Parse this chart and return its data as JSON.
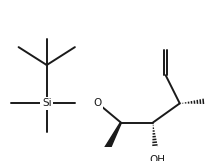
{
  "background": "#ffffff",
  "line_color": "#1a1a1a",
  "line_width": 1.4,
  "si_label": "Si",
  "o_label": "O",
  "oh_label": "OH",
  "fig_width": 2.06,
  "fig_height": 1.61,
  "dpi": 100
}
